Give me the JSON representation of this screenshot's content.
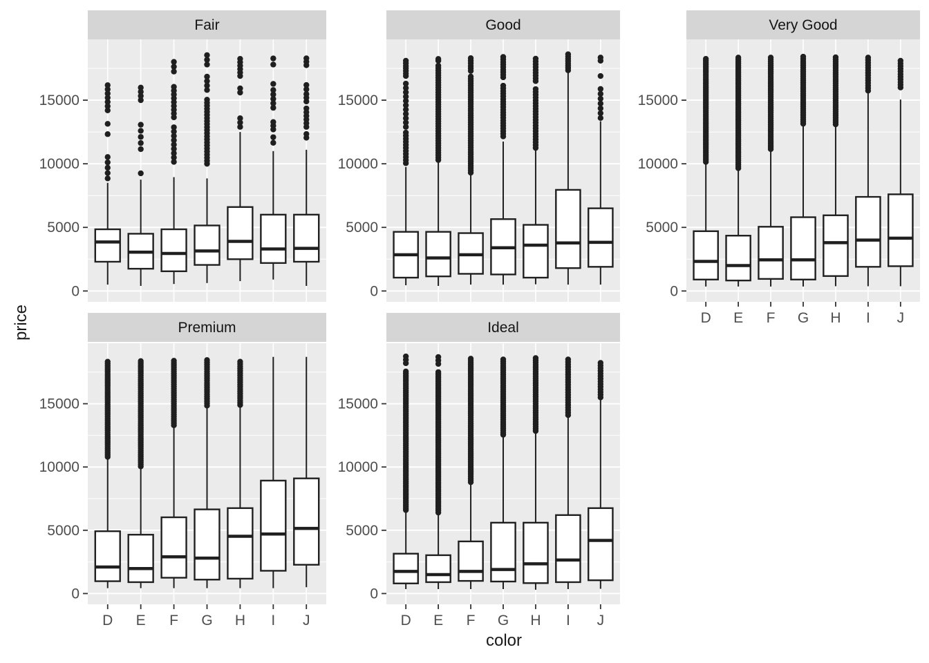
{
  "figure": {
    "ylabel": "price",
    "xlabel": "color"
  },
  "theme": {
    "panel_bg": "#EBEBEB",
    "strip_bg": "#D5D5D5",
    "grid": "#FFFFFF",
    "box_stroke": "#1F1F1F",
    "box_fill": "#FFFFFF",
    "axis_text": "#4D4D4D",
    "tick_mark": "#333333",
    "strip_text": "#141414",
    "title_text": "#1A1A1A"
  },
  "chart_data": {
    "type": "boxplot",
    "facet_variable": "cut",
    "x_variable": "color",
    "y_variable": "price",
    "categories": [
      "D",
      "E",
      "F",
      "G",
      "H",
      "I",
      "J"
    ],
    "y_ticks": [
      0,
      5000,
      10000,
      15000
    ],
    "y_minor": [
      2500,
      7500,
      12500,
      17500
    ],
    "ylim": [
      -850,
      19780
    ],
    "grid": true,
    "facets": [
      {
        "label": "Fair",
        "row": 0,
        "col": 0,
        "show_x_axis": false,
        "boxes": [
          {
            "cat": "D",
            "lo": 500,
            "q1": 2300,
            "med": 3850,
            "q3": 4850,
            "hi": 8500,
            "out": [
              [
                8850,
                10900,
                420
              ],
              [
                12330,
                13140,
                810
              ],
              [
                14200,
                16450,
                330
              ]
            ]
          },
          {
            "cat": "E",
            "lo": 400,
            "q1": 1750,
            "med": 3050,
            "q3": 4500,
            "hi": 8750,
            "out": [
              [
                9250,
                9250,
                0
              ],
              [
                11150,
                13150,
                480
              ],
              [
                15000,
                16000,
                330
              ]
            ]
          },
          {
            "cat": "F",
            "lo": 550,
            "q1": 1550,
            "med": 2950,
            "q3": 4850,
            "hi": 8950,
            "out": [
              [
                10150,
                12950,
                340
              ],
              [
                13650,
                16300,
                300
              ],
              [
                17250,
                18050,
                380
              ]
            ]
          },
          {
            "cat": "G",
            "lo": 625,
            "q1": 2050,
            "med": 3150,
            "q3": 5150,
            "hi": 8850,
            "out": [
              [
                10000,
                15050,
                240
              ],
              [
                15800,
                16900,
                350
              ],
              [
                17800,
                18550,
                370
              ]
            ]
          },
          {
            "cat": "H",
            "lo": 775,
            "q1": 2500,
            "med": 3900,
            "q3": 6600,
            "hi": 12500,
            "out": [
              [
                12900,
                13600,
                340
              ],
              [
                15600,
                15950,
                330
              ],
              [
                16900,
                18500,
                270
              ]
            ]
          },
          {
            "cat": "I",
            "lo": 900,
            "q1": 2200,
            "med": 3300,
            "q3": 6000,
            "hi": 11000,
            "out": [
              [
                11650,
                12100,
                440
              ],
              [
                12700,
                13300,
                290
              ],
              [
                14400,
                15500,
                350
              ],
              [
                15800,
                16300,
                480
              ],
              [
                17800,
                18300,
                480
              ]
            ]
          },
          {
            "cat": "J",
            "lo": 400,
            "q1": 2300,
            "med": 3350,
            "q3": 6000,
            "hi": 11100,
            "out": [
              [
                12050,
                12350,
                290
              ],
              [
                12900,
                14400,
                290
              ],
              [
                14900,
                15500,
                290
              ],
              [
                15850,
                16200,
                340
              ],
              [
                17750,
                18300,
                270
              ]
            ]
          }
        ]
      },
      {
        "label": "Good",
        "row": 0,
        "col": 1,
        "show_x_axis": false,
        "boxes": [
          {
            "cat": "D",
            "lo": 450,
            "q1": 1050,
            "med": 2850,
            "q3": 4650,
            "hi": 9750,
            "out": [
              [
                10050,
                12500,
                240
              ],
              [
                12900,
                16300,
                340
              ],
              [
                16900,
                18250,
                200
              ]
            ]
          },
          {
            "cat": "E",
            "lo": 400,
            "q1": 1150,
            "med": 2600,
            "q3": 4650,
            "hi": 10100,
            "out": [
              [
                10300,
                17800,
                190
              ],
              [
                18100,
                18250,
                140
              ]
            ]
          },
          {
            "cat": "F",
            "lo": 500,
            "q1": 1350,
            "med": 2850,
            "q3": 4550,
            "hi": 9200,
            "out": [
              [
                9300,
                17000,
                180
              ],
              [
                17300,
                18400,
                200
              ]
            ]
          },
          {
            "cat": "G",
            "lo": 500,
            "q1": 1300,
            "med": 3400,
            "q3": 5650,
            "hi": 11750,
            "out": [
              [
                12150,
                16300,
                210
              ],
              [
                16800,
                18400,
                200
              ]
            ]
          },
          {
            "cat": "H",
            "lo": 525,
            "q1": 1050,
            "med": 3600,
            "q3": 5200,
            "hi": 11050,
            "out": [
              [
                11250,
                16000,
                220
              ],
              [
                16500,
                18300,
                220
              ]
            ]
          },
          {
            "cat": "I",
            "lo": 500,
            "q1": 1800,
            "med": 3775,
            "q3": 7950,
            "hi": 17250,
            "out": [
              [
                17350,
                18700,
                180
              ]
            ]
          },
          {
            "cat": "J",
            "lo": 500,
            "q1": 1900,
            "med": 3825,
            "q3": 6500,
            "hi": 13350,
            "out": [
              [
                13600,
                15900,
                380
              ],
              [
                16900,
                16900,
                0
              ],
              [
                18100,
                18350,
                250
              ]
            ]
          }
        ]
      },
      {
        "label": "Very Good",
        "row": 0,
        "col": 2,
        "show_x_axis": true,
        "boxes": [
          {
            "cat": "D",
            "lo": 350,
            "q1": 900,
            "med": 2325,
            "q3": 4700,
            "hi": 10000,
            "out": [
              [
                10150,
                18350,
                150
              ]
            ]
          },
          {
            "cat": "E",
            "lo": 350,
            "q1": 825,
            "med": 2000,
            "q3": 4350,
            "hi": 9550,
            "out": [
              [
                9650,
                18450,
                150
              ]
            ]
          },
          {
            "cat": "F",
            "lo": 350,
            "q1": 950,
            "med": 2450,
            "q3": 5050,
            "hi": 11050,
            "out": [
              [
                11150,
                18450,
                160
              ]
            ]
          },
          {
            "cat": "G",
            "lo": 350,
            "q1": 900,
            "med": 2450,
            "q3": 5800,
            "hi": 13050,
            "out": [
              [
                13150,
                18450,
                170
              ]
            ]
          },
          {
            "cat": "H",
            "lo": 375,
            "q1": 1175,
            "med": 3800,
            "q3": 5950,
            "hi": 13000,
            "out": [
              [
                13100,
                18450,
                170
              ]
            ]
          },
          {
            "cat": "I",
            "lo": 375,
            "q1": 1900,
            "med": 4000,
            "q3": 7400,
            "hi": 15650,
            "out": [
              [
                15750,
                18400,
                200
              ]
            ]
          },
          {
            "cat": "J",
            "lo": 375,
            "q1": 1950,
            "med": 4150,
            "q3": 7600,
            "hi": 15050,
            "out": [
              [
                16000,
                18300,
                210
              ]
            ]
          }
        ]
      },
      {
        "label": "Premium",
        "row": 1,
        "col": 0,
        "show_x_axis": true,
        "boxes": [
          {
            "cat": "D",
            "lo": 425,
            "q1": 975,
            "med": 2100,
            "q3": 4925,
            "hi": 10650,
            "out": [
              [
                10800,
                18400,
                160
              ]
            ]
          },
          {
            "cat": "E",
            "lo": 425,
            "q1": 900,
            "med": 1975,
            "q3": 4650,
            "hi": 9950,
            "out": [
              [
                10050,
                18400,
                160
              ]
            ]
          },
          {
            "cat": "F",
            "lo": 425,
            "q1": 1250,
            "med": 2900,
            "q3": 6025,
            "hi": 13175,
            "out": [
              [
                13300,
                18450,
                170
              ]
            ]
          },
          {
            "cat": "G",
            "lo": 425,
            "q1": 1100,
            "med": 2800,
            "q3": 6650,
            "hi": 14750,
            "out": [
              [
                14850,
                18450,
                180
              ]
            ]
          },
          {
            "cat": "H",
            "lo": 425,
            "q1": 1175,
            "med": 4525,
            "q3": 6750,
            "hi": 14775,
            "out": [
              [
                14900,
                18450,
                180
              ]
            ]
          },
          {
            "cat": "I",
            "lo": 425,
            "q1": 1800,
            "med": 4700,
            "q3": 8925,
            "hi": 18700,
            "out": []
          },
          {
            "cat": "J",
            "lo": 500,
            "q1": 2275,
            "med": 5150,
            "q3": 9100,
            "hi": 18700,
            "out": []
          }
        ]
      },
      {
        "label": "Ideal",
        "row": 1,
        "col": 1,
        "show_x_axis": true,
        "boxes": [
          {
            "cat": "D",
            "lo": 350,
            "q1": 800,
            "med": 1750,
            "q3": 3150,
            "hi": 6400,
            "out": [
              [
                6600,
                17600,
                150
              ],
              [
                18200,
                18750,
                270
              ]
            ]
          },
          {
            "cat": "E",
            "lo": 350,
            "q1": 900,
            "med": 1500,
            "q3": 3030,
            "hi": 6220,
            "out": [
              [
                6400,
                17550,
                150
              ],
              [
                18150,
                18700,
                270
              ]
            ]
          },
          {
            "cat": "F",
            "lo": 350,
            "q1": 1000,
            "med": 1750,
            "q3": 4120,
            "hi": 8690,
            "out": [
              [
                8800,
                18650,
                160
              ]
            ]
          },
          {
            "cat": "G",
            "lo": 350,
            "q1": 950,
            "med": 1900,
            "q3": 5600,
            "hi": 12450,
            "out": [
              [
                12550,
                18650,
                170
              ]
            ]
          },
          {
            "cat": "H",
            "lo": 300,
            "q1": 825,
            "med": 2350,
            "q3": 5600,
            "hi": 12750,
            "out": [
              [
                12850,
                18650,
                180
              ]
            ]
          },
          {
            "cat": "I",
            "lo": 350,
            "q1": 900,
            "med": 2650,
            "q3": 6200,
            "hi": 14000,
            "out": [
              [
                14100,
                18500,
                200
              ]
            ]
          },
          {
            "cat": "J",
            "lo": 375,
            "q1": 1050,
            "med": 4200,
            "q3": 6750,
            "hi": 15400,
            "out": [
              [
                15500,
                18350,
                210
              ]
            ]
          }
        ]
      }
    ]
  }
}
